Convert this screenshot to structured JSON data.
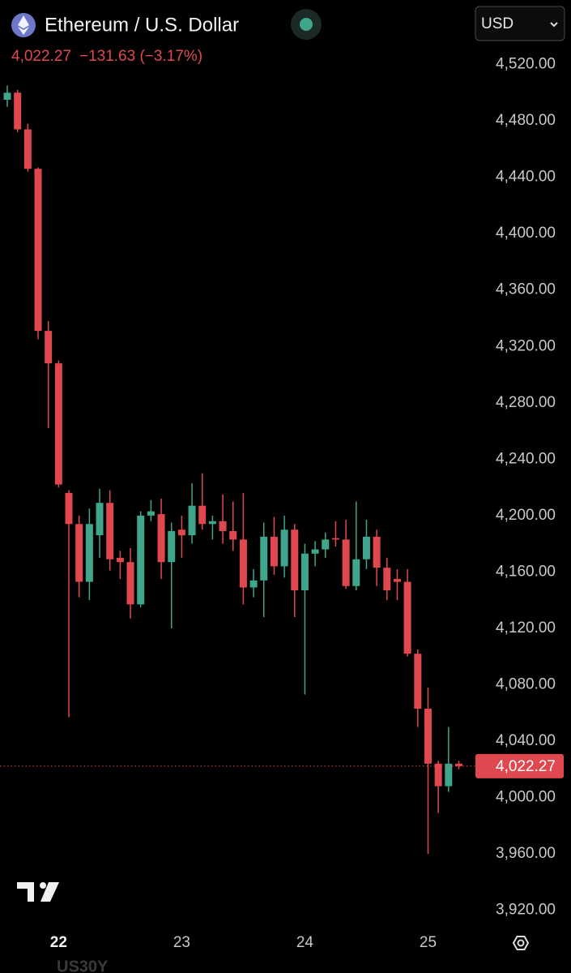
{
  "chart_data": {
    "type": "candlestick",
    "title": "Ethereum / U.S. Dollar",
    "change": "−131.63 (−3.17%)",
    "currency": "USD",
    "footer": "US30Y",
    "last_price": {
      "value": 4022.27,
      "label": "4,022.27"
    },
    "up_color": "#3fa58b",
    "down_color": "#e0484f",
    "grid": false,
    "categories": [
      null,
      null,
      null,
      null,
      null,
      "22",
      null,
      null,
      null,
      null,
      null,
      null,
      null,
      null,
      null,
      null,
      null,
      "23",
      null,
      null,
      null,
      null,
      null,
      null,
      null,
      null,
      null,
      null,
      null,
      "24",
      null,
      null,
      null,
      null,
      null,
      null,
      null,
      null,
      null,
      null,
      null,
      "25",
      null,
      null,
      null
    ],
    "open": [
      4495,
      4500,
      4474,
      4446,
      4331,
      4308,
      4216,
      4194,
      4153,
      4186,
      4209,
      4170,
      4167,
      4137,
      4200,
      4201,
      4167,
      4190,
      4186,
      4207,
      4194,
      4196,
      4189,
      4183,
      4149,
      4154,
      4185,
      4164,
      4190,
      4147,
      4173,
      4176,
      4184,
      4183,
      4150,
      4169,
      4185,
      4163,
      4155,
      4153,
      4102,
      4063,
      4024,
      4008,
      4024
    ],
    "high": [
      4505,
      4502,
      4478,
      4447,
      4338,
      4310,
      4218,
      4200,
      4205,
      4219,
      4218,
      4175,
      4177,
      4203,
      4211,
      4212,
      4195,
      4200,
      4223,
      4230,
      4200,
      4215,
      4210,
      4216,
      4162,
      4195,
      4199,
      4200,
      4194,
      4180,
      4182,
      4188,
      4196,
      4197,
      4210,
      4197,
      4190,
      4170,
      4162,
      4162,
      4105,
      4078,
      4026,
      4050,
      4026
    ],
    "low": [
      4490,
      4472,
      4444,
      4325,
      4262,
      4220,
      4057,
      4142,
      4140,
      4170,
      4161,
      4155,
      4127,
      4135,
      4196,
      4155,
      4120,
      4170,
      4180,
      4190,
      4183,
      4180,
      4175,
      4137,
      4142,
      4128,
      4158,
      4156,
      4128,
      4073,
      4164,
      4170,
      4178,
      4148,
      4147,
      4162,
      4150,
      4140,
      4140,
      4100,
      4050,
      3960,
      3989,
      4004,
      4020
    ],
    "close": [
      4500,
      4474,
      4446,
      4331,
      4308,
      4222,
      4194,
      4153,
      4194,
      4209,
      4169,
      4167,
      4137,
      4200,
      4203,
      4167,
      4189,
      4186,
      4207,
      4194,
      4196,
      4189,
      4183,
      4149,
      4154,
      4185,
      4164,
      4190,
      4147,
      4173,
      4176,
      4183,
      4183,
      4150,
      4169,
      4185,
      4163,
      4147,
      4153,
      4102,
      4063,
      4024,
      4008,
      4024,
      4022.27
    ],
    "ylim": [
      3910,
      4537
    ],
    "yticks": [
      {
        "value": 4520,
        "label": "4,520.00"
      },
      {
        "value": 4480,
        "label": "4,480.00"
      },
      {
        "value": 4440,
        "label": "4,440.00"
      },
      {
        "value": 4400,
        "label": "4,400.00"
      },
      {
        "value": 4360,
        "label": "4,360.00"
      },
      {
        "value": 4320,
        "label": "4,320.00"
      },
      {
        "value": 4280,
        "label": "4,280.00"
      },
      {
        "value": 4240,
        "label": "4,240.00"
      },
      {
        "value": 4200,
        "label": "4,200.00"
      },
      {
        "value": 4160,
        "label": "4,160.00"
      },
      {
        "value": 4120,
        "label": "4,120.00"
      },
      {
        "value": 4080,
        "label": "4,080.00"
      },
      {
        "value": 4040,
        "label": "4,040.00"
      },
      {
        "value": 4000,
        "label": "4,000.00"
      },
      {
        "value": 3960,
        "label": "3,960.00"
      },
      {
        "value": 3920,
        "label": "3,920.00"
      }
    ]
  }
}
